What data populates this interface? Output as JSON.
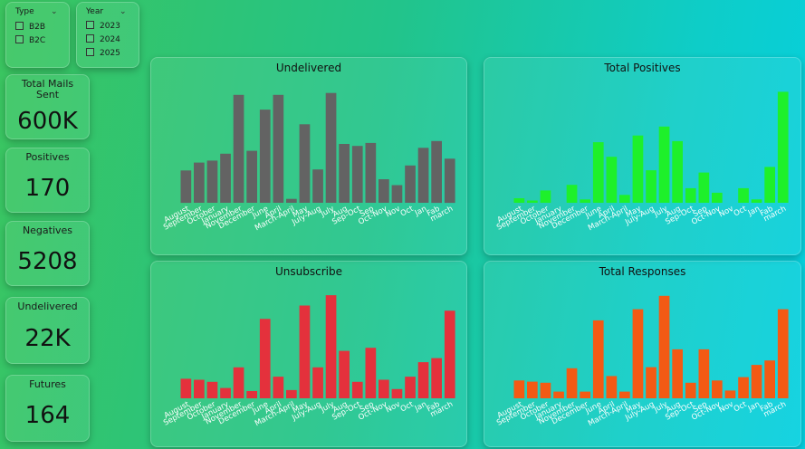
{
  "filters": {
    "type": {
      "title": "Type",
      "options": [
        "B2B",
        "B2C"
      ]
    },
    "year": {
      "title": "Year",
      "options": [
        "2023",
        "2024",
        "2025"
      ]
    }
  },
  "kpis": [
    {
      "label": "Total Mails Sent",
      "value": "600K"
    },
    {
      "label": "Positives",
      "value": "170"
    },
    {
      "label": "Negatives",
      "value": "5208"
    },
    {
      "label": "Undelivered",
      "value": "22K"
    },
    {
      "label": "Futures",
      "value": "164"
    }
  ],
  "chart_data": [
    {
      "type": "bar",
      "title": "Undelivered",
      "color": "#636363",
      "categories": [
        "August",
        "September",
        "October",
        "January",
        "November",
        "December",
        "June",
        "April",
        "March-April",
        "May",
        "July-Aug",
        "July",
        "Aug",
        "Sep-Oct",
        "Sep",
        "Oct-Nov",
        "Nov",
        "Oct",
        "Jan",
        "Fab",
        "march"
      ],
      "values": [
        33,
        41,
        43,
        50,
        110,
        53,
        95,
        110,
        4,
        80,
        34,
        112,
        60,
        58,
        61,
        24,
        18,
        38,
        56,
        63,
        45
      ],
      "ylim": [
        0,
        120
      ]
    },
    {
      "type": "bar",
      "title": "Total Positives",
      "color": "#1ef02a",
      "categories": [
        "August",
        "September",
        "October",
        "January",
        "November",
        "December",
        "June",
        "April",
        "March-April",
        "May",
        "July-Aug",
        "July",
        "Aug",
        "Sep-Oct",
        "Sep",
        "Oct-Nov",
        "Nov",
        "Oct",
        "Jan",
        "Fab",
        "march"
      ],
      "values": [
        4,
        2,
        11,
        0,
        16,
        3,
        54,
        41,
        7,
        60,
        29,
        68,
        55,
        13,
        27,
        9,
        0,
        13,
        3,
        32,
        99
      ],
      "ylim": [
        0,
        105
      ]
    },
    {
      "type": "bar",
      "title": "Unsubscribe",
      "color": "#e4313c",
      "categories": [
        "August",
        "September",
        "October",
        "January",
        "November",
        "December",
        "June",
        "April",
        "March-April",
        "May",
        "July-Aug",
        "July",
        "Aug",
        "Sep-Oct",
        "Sep",
        "Oct-Nov",
        "Nov",
        "Oct",
        "Jan",
        "Fab",
        "march"
      ],
      "values": [
        19,
        18,
        16,
        10,
        30,
        7,
        77,
        21,
        8,
        90,
        30,
        100,
        46,
        16,
        49,
        18,
        9,
        21,
        35,
        39,
        85
      ],
      "ylim": [
        0,
        108
      ]
    },
    {
      "type": "bar",
      "title": "Total Responses",
      "color": "#f35a14",
      "categories": [
        "August",
        "September",
        "October",
        "January",
        "November",
        "December",
        "June",
        "April",
        "March-April",
        "May",
        "July-Aug",
        "July",
        "Aug",
        "Sep-Oct",
        "Sep",
        "Oct-Nov",
        "Nov",
        "Oct",
        "Jan",
        "Fab",
        "march"
      ],
      "values": [
        16,
        15,
        14,
        6,
        27,
        6,
        70,
        20,
        6,
        80,
        28,
        92,
        44,
        14,
        44,
        16,
        7,
        19,
        30,
        34,
        80
      ],
      "ylim": [
        0,
        100
      ]
    }
  ]
}
